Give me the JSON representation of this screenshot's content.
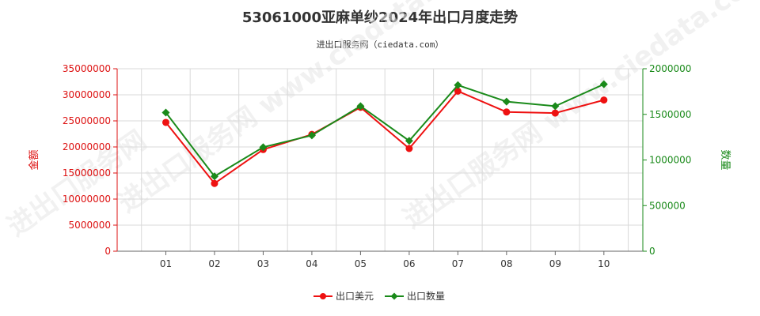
{
  "chart_data": {
    "type": "line",
    "title": "53061000亚麻单纱2024年出口月度走势",
    "subtitle": "进出口服务网（ciedata.com）",
    "categories": [
      "01",
      "02",
      "03",
      "04",
      "05",
      "06",
      "07",
      "08",
      "09",
      "10"
    ],
    "y_left": {
      "label": "金额",
      "ylim": [
        0,
        35000000
      ],
      "ticks": [
        "0",
        "5000000",
        "10000000",
        "15000000",
        "20000000",
        "25000000",
        "30000000",
        "35000000"
      ],
      "color": "#dd1111"
    },
    "y_right": {
      "label": "数量",
      "ylim": [
        0,
        2000000
      ],
      "ticks": [
        "0",
        "500000",
        "1000000",
        "1500000",
        "2000000"
      ],
      "color": "#1a8a1a"
    },
    "series": [
      {
        "name": "出口美元",
        "axis": "left",
        "color": "#ee1111",
        "values": [
          24700000,
          13000000,
          19500000,
          22400000,
          27600000,
          19700000,
          30700000,
          26700000,
          26500000,
          29000000
        ]
      },
      {
        "name": "出口数量",
        "axis": "right",
        "color": "#1a8a1a",
        "values": [
          1520000,
          820000,
          1140000,
          1270000,
          1590000,
          1210000,
          1820000,
          1640000,
          1590000,
          1830000
        ]
      }
    ],
    "grid": true,
    "legend_position": "bottom"
  }
}
